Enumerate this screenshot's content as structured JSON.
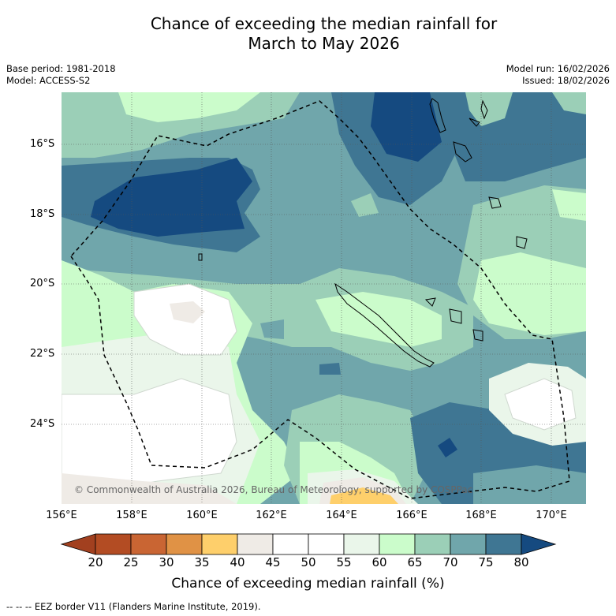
{
  "title": {
    "line1": "Chance of exceeding the median rainfall for",
    "line2": "March to May 2026"
  },
  "meta": {
    "base_period": "Base period: 1981-2018",
    "model": "Model: ACCESS-S2",
    "model_run": "Model run: 16/02/2026",
    "issued": "Issued: 18/02/2026"
  },
  "axes": {
    "lat_labels": [
      "16°S",
      "18°S",
      "20°S",
      "22°S",
      "24°S"
    ],
    "lon_labels": [
      "156°E",
      "158°E",
      "160°E",
      "162°E",
      "164°E",
      "166°E",
      "168°E",
      "170°E"
    ]
  },
  "colorbar": {
    "ticks": [
      "20",
      "25",
      "30",
      "35",
      "40",
      "45",
      "50",
      "55",
      "60",
      "65",
      "70",
      "75",
      "80"
    ],
    "colors": [
      "#a2401f",
      "#b34c23",
      "#c96533",
      "#e09245",
      "#fecf6b",
      "#efebe6",
      "#ffffff",
      "#ffffff",
      "#eaf6ea",
      "#cbfccb",
      "#9bcfb7",
      "#70a6ab",
      "#3f7693",
      "#154a80"
    ],
    "label": "Chance of exceeding median rainfall (%)"
  },
  "copyright": "© Commonwealth of Australia 2026, Bureau of Meteorology, supported by COSPPac",
  "footnote": "--  --  -- EEZ border V11 (Flanders Marine Institute, 2019).",
  "map_regions": {
    "north_band": "65-75",
    "northwest_core": "75-80",
    "center_east": "60-70",
    "southwest": "45-60",
    "south_center_orange": "35-40",
    "southeast_core": "75-80"
  }
}
